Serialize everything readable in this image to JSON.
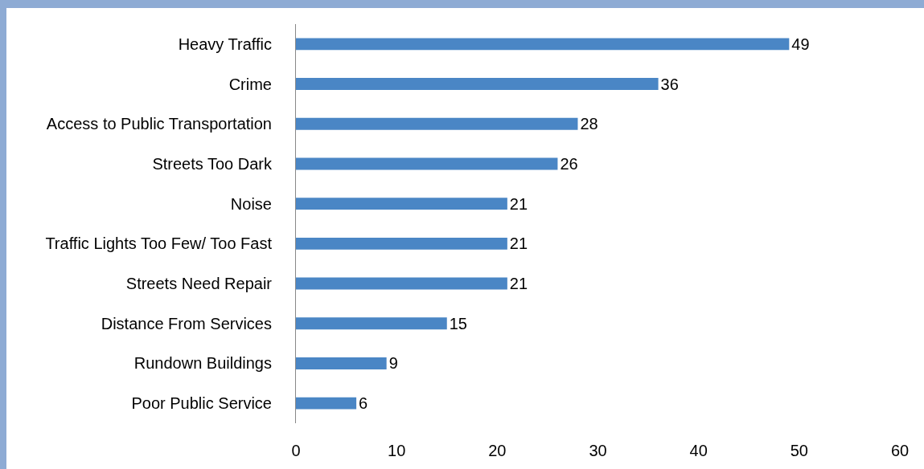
{
  "chart_data": {
    "type": "bar",
    "orientation": "horizontal",
    "categories": [
      "Heavy Traffic",
      "Crime",
      "Access to Public Transportation",
      "Streets Too Dark",
      "Noise",
      "Traffic Lights Too Few/ Too Fast",
      "Streets Need Repair",
      "Distance From Services",
      "Rundown Buildings",
      "Poor Public Service"
    ],
    "values": [
      49,
      36,
      28,
      26,
      21,
      21,
      21,
      15,
      9,
      6
    ],
    "color": "#4a86c5",
    "xlim": [
      0,
      60
    ],
    "xticks": [
      0,
      10,
      20,
      30,
      40,
      50,
      60
    ],
    "grid": false,
    "data_labels": true
  }
}
